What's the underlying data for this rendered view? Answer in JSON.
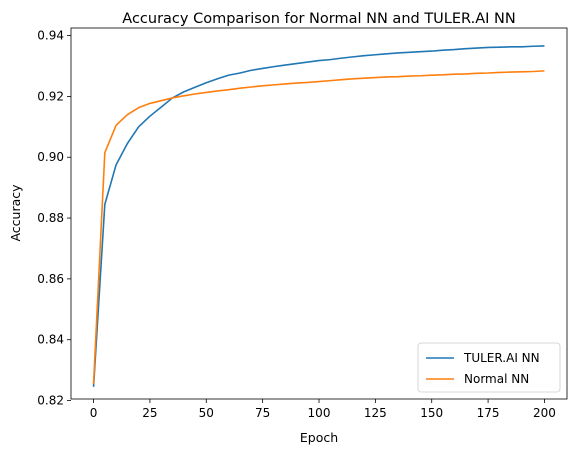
{
  "chart_data": {
    "type": "line",
    "title": "Accuracy Comparison for Normal NN and TULER.AI NN",
    "xlabel": "Epoch",
    "ylabel": "Accuracy",
    "xlim": [
      -10,
      210
    ],
    "ylim": [
      0.8205,
      0.9425
    ],
    "xticks": [
      0,
      25,
      50,
      75,
      100,
      125,
      150,
      175,
      200
    ],
    "yticks": [
      0.82,
      0.84,
      0.86,
      0.88,
      0.9,
      0.92,
      0.94
    ],
    "ytick_labels": [
      "0.82",
      "0.84",
      "0.86",
      "0.88",
      "0.90",
      "0.92",
      "0.94"
    ],
    "grid": false,
    "legend_position": "lower-right",
    "x": [
      0,
      5,
      10,
      15,
      20,
      25,
      30,
      35,
      40,
      45,
      50,
      55,
      60,
      65,
      70,
      75,
      80,
      85,
      90,
      95,
      100,
      105,
      110,
      115,
      120,
      125,
      130,
      135,
      140,
      145,
      150,
      155,
      160,
      165,
      170,
      175,
      180,
      185,
      190,
      195,
      200
    ],
    "series": [
      {
        "name": "TULER.AI NN",
        "color": "#1f77b4",
        "values": [
          0.8245,
          0.8845,
          0.8975,
          0.9045,
          0.91,
          0.9135,
          0.9165,
          0.9195,
          0.9215,
          0.923,
          0.9245,
          0.9258,
          0.927,
          0.9277,
          0.9286,
          0.9292,
          0.9298,
          0.9303,
          0.9308,
          0.9313,
          0.9318,
          0.9321,
          0.9326,
          0.933,
          0.9334,
          0.9337,
          0.934,
          0.9343,
          0.9345,
          0.9347,
          0.9349,
          0.9352,
          0.9354,
          0.9357,
          0.9359,
          0.9361,
          0.9362,
          0.9363,
          0.9363,
          0.9365,
          0.9366
        ]
      },
      {
        "name": "Normal NN",
        "color": "#ff7f0e",
        "values": [
          0.8255,
          0.9015,
          0.9105,
          0.914,
          0.9163,
          0.9177,
          0.9186,
          0.9195,
          0.9202,
          0.9208,
          0.9213,
          0.9218,
          0.9222,
          0.9227,
          0.9231,
          0.9235,
          0.9238,
          0.9241,
          0.9244,
          0.9246,
          0.9249,
          0.9252,
          0.9255,
          0.9258,
          0.926,
          0.9262,
          0.9264,
          0.9265,
          0.9267,
          0.9268,
          0.927,
          0.9271,
          0.9273,
          0.9274,
          0.9276,
          0.9277,
          0.9279,
          0.928,
          0.9281,
          0.9282,
          0.9284
        ]
      }
    ]
  }
}
